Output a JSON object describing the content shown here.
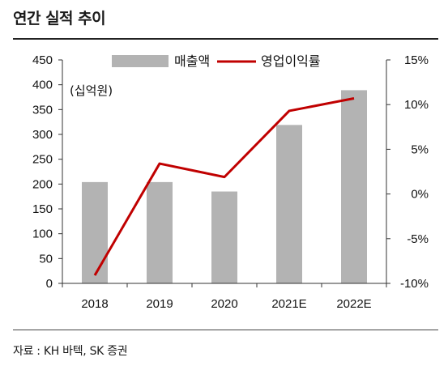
{
  "title": "연간 실적 추이",
  "source": "자료 : KH 바텍, SK 증권",
  "colors": {
    "bar": "#b3b3b3",
    "line": "#c00000",
    "axis": "#333333"
  },
  "chart_data": {
    "type": "bar",
    "categories": [
      "2018",
      "2019",
      "2020",
      "2021E",
      "2022E"
    ],
    "unit_label": "(십억원)",
    "series": [
      {
        "name": "매출액",
        "type": "bar",
        "axis": "left",
        "values": [
          204,
          204,
          185,
          319,
          389
        ]
      },
      {
        "name": "영업이익률",
        "type": "line",
        "axis": "right",
        "values": [
          -9.1,
          3.4,
          1.9,
          9.3,
          10.7
        ]
      }
    ],
    "ylim": [
      0,
      450
    ],
    "y_ticks": [
      "450",
      "400",
      "350",
      "300",
      "250",
      "200",
      "150",
      "100",
      "50",
      "0"
    ],
    "y2lim": [
      -10,
      15
    ],
    "y2_ticks": [
      "15%",
      "10%",
      "5%",
      "0%",
      "-5%",
      "-10%"
    ],
    "grid": false,
    "legend_position": "top"
  }
}
